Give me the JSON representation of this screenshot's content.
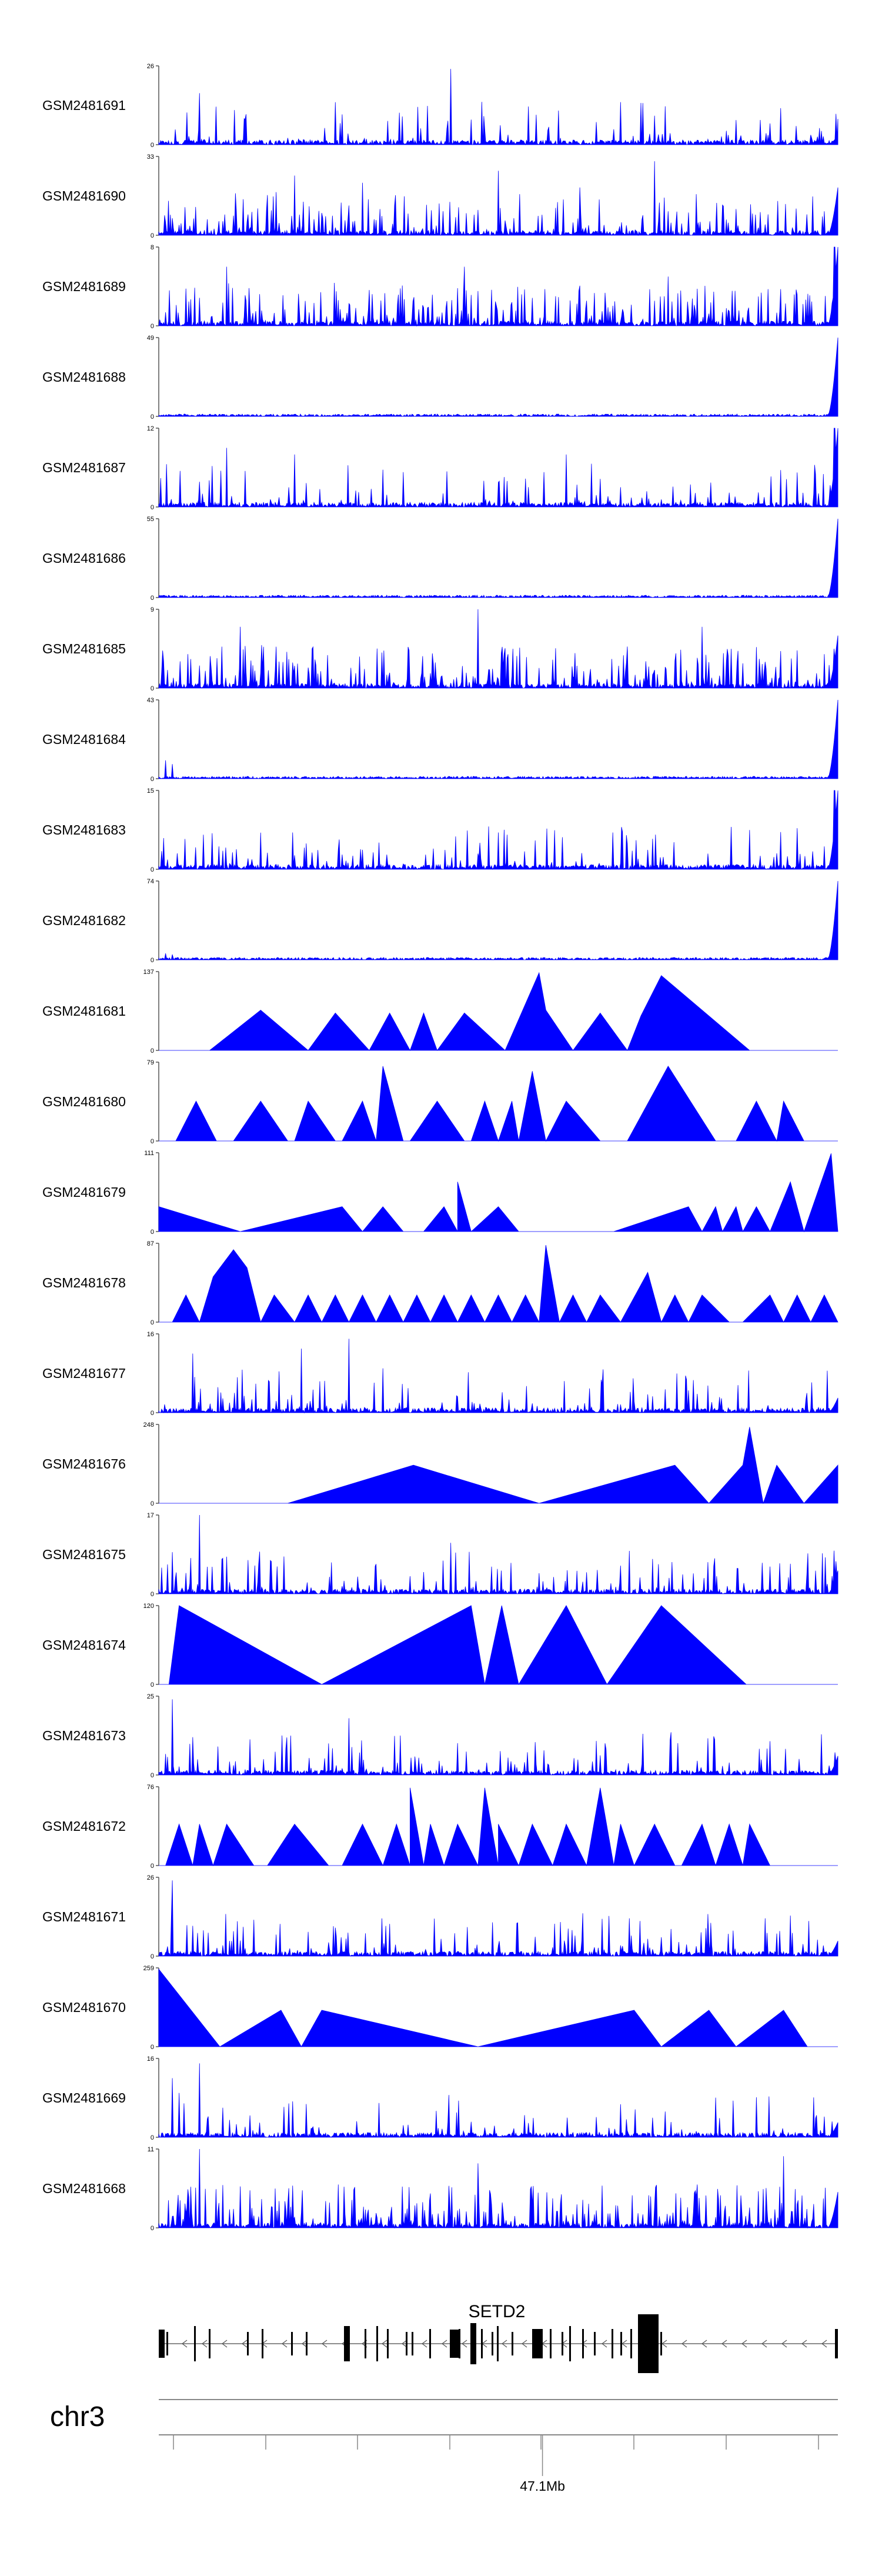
{
  "chart_data": {
    "type": "area",
    "title": "",
    "color": "#0000ff",
    "tracks": [
      {
        "name": "GSM2481691",
        "ymax": 26,
        "pattern": "noise",
        "peaks": [
          [
            0.43,
            25
          ],
          [
            0.06,
            17
          ],
          [
            0.27,
            10
          ],
          [
            0.26,
            14
          ],
          [
            0.9,
            7
          ]
        ],
        "tail": 3
      },
      {
        "name": "GSM2481690",
        "ymax": 33,
        "pattern": "tri",
        "peaks": [
          [
            0.73,
            31
          ],
          [
            0.5,
            27
          ],
          [
            0.2,
            25
          ],
          [
            0.3,
            22
          ],
          [
            0.62,
            20
          ]
        ],
        "tail": 20
      },
      {
        "name": "GSM2481689",
        "ymax": 8,
        "pattern": "noise_dense",
        "peaks": [
          [
            0.995,
            8
          ],
          [
            0.45,
            6
          ],
          [
            0.1,
            6
          ],
          [
            0.75,
            5
          ]
        ],
        "tail": 8
      },
      {
        "name": "GSM2481688",
        "ymax": 49,
        "pattern": "flat",
        "peaks": [],
        "tail": 49
      },
      {
        "name": "GSM2481687",
        "ymax": 12,
        "pattern": "noise",
        "peaks": [
          [
            0.995,
            12
          ],
          [
            0.1,
            9
          ],
          [
            0.2,
            8
          ],
          [
            0.6,
            8
          ]
        ],
        "tail": 12
      },
      {
        "name": "GSM2481686",
        "ymax": 55,
        "pattern": "flat",
        "peaks": [],
        "tail": 55
      },
      {
        "name": "GSM2481685",
        "ymax": 9,
        "pattern": "noise_dense",
        "peaks": [
          [
            0.47,
            9
          ],
          [
            0.12,
            7
          ],
          [
            0.8,
            7
          ]
        ],
        "tail": 6
      },
      {
        "name": "GSM2481684",
        "ymax": 43,
        "pattern": "flat",
        "peaks": [
          [
            0.01,
            10
          ],
          [
            0.02,
            8
          ]
        ],
        "tail": 43
      },
      {
        "name": "GSM2481683",
        "ymax": 15,
        "pattern": "noise",
        "peaks": [
          [
            0.995,
            15
          ],
          [
            0.5,
            7
          ]
        ],
        "tail": 15
      },
      {
        "name": "GSM2481682",
        "ymax": 74,
        "pattern": "flat",
        "peaks": [
          [
            0.01,
            6
          ],
          [
            0.02,
            5
          ]
        ],
        "tail": 74
      },
      {
        "name": "GSM2481681",
        "ymax": 137,
        "pattern": "tri_sparse",
        "peaks": [
          [
            0.075,
            0
          ],
          [
            0.15,
            70
          ],
          [
            0.22,
            0
          ],
          [
            0.26,
            65
          ],
          [
            0.31,
            0
          ],
          [
            0.34,
            65
          ],
          [
            0.37,
            0
          ],
          [
            0.39,
            65
          ],
          [
            0.41,
            0
          ],
          [
            0.45,
            65
          ],
          [
            0.51,
            0
          ],
          [
            0.57,
            70
          ],
          [
            0.56,
            135
          ],
          [
            0.61,
            0
          ],
          [
            0.65,
            65
          ],
          [
            0.69,
            0
          ],
          [
            0.71,
            60
          ],
          [
            0.74,
            130
          ],
          [
            0.87,
            0
          ]
        ],
        "tail": 0
      },
      {
        "name": "GSM2481680",
        "ymax": 79,
        "pattern": "tri_sparse",
        "peaks": [
          [
            0.025,
            0
          ],
          [
            0.055,
            40
          ],
          [
            0.085,
            0
          ],
          [
            0.11,
            0
          ],
          [
            0.15,
            40
          ],
          [
            0.19,
            0
          ],
          [
            0.2,
            0
          ],
          [
            0.22,
            40
          ],
          [
            0.26,
            0
          ],
          [
            0.27,
            0
          ],
          [
            0.3,
            40
          ],
          [
            0.32,
            0
          ],
          [
            0.33,
            75
          ],
          [
            0.36,
            0
          ],
          [
            0.37,
            0
          ],
          [
            0.41,
            40
          ],
          [
            0.45,
            0
          ],
          [
            0.46,
            0
          ],
          [
            0.48,
            40
          ],
          [
            0.5,
            0
          ],
          [
            0.52,
            40
          ],
          [
            0.53,
            0
          ],
          [
            0.55,
            70
          ],
          [
            0.57,
            0
          ],
          [
            0.6,
            40
          ],
          [
            0.65,
            0
          ],
          [
            0.69,
            0
          ],
          [
            0.75,
            75
          ],
          [
            0.82,
            0
          ],
          [
            0.85,
            0
          ],
          [
            0.88,
            40
          ],
          [
            0.91,
            0
          ],
          [
            0.92,
            40
          ],
          [
            0.95,
            0
          ]
        ],
        "tail": 0
      },
      {
        "name": "GSM2481679",
        "ymax": 111,
        "pattern": "tri_sparse",
        "peaks": [
          [
            0.0,
            35
          ],
          [
            0.12,
            0
          ],
          [
            0.27,
            35
          ],
          [
            0.3,
            0
          ],
          [
            0.33,
            35
          ],
          [
            0.36,
            0
          ],
          [
            0.39,
            0
          ],
          [
            0.42,
            35
          ],
          [
            0.44,
            0
          ],
          [
            0.44,
            70
          ],
          [
            0.46,
            0
          ],
          [
            0.5,
            35
          ],
          [
            0.53,
            0
          ],
          [
            0.67,
            0
          ],
          [
            0.78,
            35
          ],
          [
            0.8,
            0
          ],
          [
            0.82,
            35
          ],
          [
            0.83,
            0
          ],
          [
            0.85,
            35
          ],
          [
            0.86,
            0
          ],
          [
            0.88,
            35
          ],
          [
            0.9,
            0
          ],
          [
            0.93,
            70
          ],
          [
            0.95,
            0
          ],
          [
            0.99,
            110
          ],
          [
            1.0,
            0
          ]
        ],
        "tail": 0
      },
      {
        "name": "GSM2481678",
        "ymax": 87,
        "pattern": "tri_sparse",
        "peaks": [
          [
            0.02,
            0
          ],
          [
            0.04,
            30
          ],
          [
            0.06,
            0
          ],
          [
            0.08,
            50
          ],
          [
            0.1,
            70
          ],
          [
            0.11,
            80
          ],
          [
            0.13,
            60
          ],
          [
            0.15,
            0
          ],
          [
            0.17,
            30
          ],
          [
            0.2,
            0
          ],
          [
            0.22,
            30
          ],
          [
            0.24,
            0
          ],
          [
            0.26,
            30
          ],
          [
            0.28,
            0
          ],
          [
            0.3,
            30
          ],
          [
            0.32,
            0
          ],
          [
            0.34,
            30
          ],
          [
            0.36,
            0
          ],
          [
            0.38,
            30
          ],
          [
            0.4,
            0
          ],
          [
            0.42,
            30
          ],
          [
            0.44,
            0
          ],
          [
            0.46,
            30
          ],
          [
            0.48,
            0
          ],
          [
            0.5,
            30
          ],
          [
            0.52,
            0
          ],
          [
            0.54,
            30
          ],
          [
            0.56,
            0
          ],
          [
            0.57,
            85
          ],
          [
            0.59,
            0
          ],
          [
            0.61,
            30
          ],
          [
            0.63,
            0
          ],
          [
            0.65,
            30
          ],
          [
            0.68,
            0
          ],
          [
            0.72,
            55
          ],
          [
            0.74,
            0
          ],
          [
            0.76,
            30
          ],
          [
            0.78,
            0
          ],
          [
            0.8,
            30
          ],
          [
            0.84,
            0
          ],
          [
            0.86,
            0
          ],
          [
            0.9,
            30
          ],
          [
            0.92,
            0
          ],
          [
            0.94,
            30
          ],
          [
            0.96,
            0
          ],
          [
            0.98,
            30
          ],
          [
            1.0,
            0
          ]
        ],
        "tail": 0
      },
      {
        "name": "GSM2481677",
        "ymax": 16,
        "pattern": "noise",
        "peaks": [
          [
            0.28,
            15
          ],
          [
            0.21,
            13
          ],
          [
            0.05,
            12
          ],
          [
            0.33,
            9
          ]
        ],
        "tail": 3
      },
      {
        "name": "GSM2481676",
        "ymax": 248,
        "pattern": "tri_sparse",
        "peaks": [
          [
            0.19,
            0
          ],
          [
            0.375,
            120
          ],
          [
            0.56,
            0
          ],
          [
            0.76,
            120
          ],
          [
            0.81,
            0
          ],
          [
            0.86,
            120
          ],
          [
            0.87,
            240
          ],
          [
            0.89,
            0
          ],
          [
            0.91,
            120
          ],
          [
            0.95,
            0
          ],
          [
            1.0,
            120
          ],
          [
            1.0,
            0
          ]
        ],
        "tail": 0
      },
      {
        "name": "GSM2481675",
        "ymax": 17,
        "pattern": "noise",
        "peaks": [
          [
            0.06,
            17
          ],
          [
            0.43,
            11
          ],
          [
            0.02,
            9
          ],
          [
            0.1,
            8
          ]
        ],
        "tail": 5
      },
      {
        "name": "GSM2481674",
        "ymax": 120,
        "pattern": "tri_sparse",
        "peaks": [
          [
            0.015,
            0
          ],
          [
            0.03,
            120
          ],
          [
            0.24,
            0
          ],
          [
            0.46,
            120
          ],
          [
            0.48,
            0
          ],
          [
            0.505,
            120
          ],
          [
            0.53,
            0
          ],
          [
            0.6,
            120
          ],
          [
            0.66,
            0
          ],
          [
            0.74,
            120
          ],
          [
            0.865,
            0
          ]
        ],
        "tail": 0
      },
      {
        "name": "GSM2481673",
        "ymax": 25,
        "pattern": "noise",
        "peaks": [
          [
            0.02,
            24
          ],
          [
            0.28,
            18
          ],
          [
            0.05,
            12
          ],
          [
            0.25,
            10
          ]
        ],
        "tail": 6
      },
      {
        "name": "GSM2481672",
        "ymax": 76,
        "pattern": "tri_sparse",
        "peaks": [
          [
            0.01,
            0
          ],
          [
            0.03,
            40
          ],
          [
            0.05,
            0
          ],
          [
            0.06,
            40
          ],
          [
            0.08,
            0
          ],
          [
            0.1,
            40
          ],
          [
            0.14,
            0
          ],
          [
            0.16,
            0
          ],
          [
            0.2,
            40
          ],
          [
            0.25,
            0
          ],
          [
            0.27,
            0
          ],
          [
            0.3,
            40
          ],
          [
            0.33,
            0
          ],
          [
            0.35,
            40
          ],
          [
            0.37,
            0
          ],
          [
            0.37,
            75
          ],
          [
            0.39,
            0
          ],
          [
            0.4,
            40
          ],
          [
            0.42,
            0
          ],
          [
            0.44,
            40
          ],
          [
            0.47,
            0
          ],
          [
            0.48,
            75
          ],
          [
            0.5,
            0
          ],
          [
            0.5,
            40
          ],
          [
            0.53,
            0
          ],
          [
            0.55,
            40
          ],
          [
            0.58,
            0
          ],
          [
            0.6,
            40
          ],
          [
            0.63,
            0
          ],
          [
            0.65,
            75
          ],
          [
            0.67,
            0
          ],
          [
            0.68,
            40
          ],
          [
            0.7,
            0
          ],
          [
            0.73,
            40
          ],
          [
            0.76,
            0
          ],
          [
            0.77,
            0
          ],
          [
            0.8,
            40
          ],
          [
            0.82,
            0
          ],
          [
            0.84,
            40
          ],
          [
            0.86,
            0
          ],
          [
            0.87,
            40
          ],
          [
            0.9,
            0
          ],
          [
            0.91,
            0
          ],
          [
            0.95,
            0
          ]
        ],
        "tail": 0
      },
      {
        "name": "GSM2481671",
        "ymax": 26,
        "pattern": "noise",
        "peaks": [
          [
            0.02,
            25
          ],
          [
            0.05,
            10
          ],
          [
            0.14,
            12
          ],
          [
            0.22,
            8
          ]
        ],
        "tail": 5
      },
      {
        "name": "GSM2481670",
        "ymax": 259,
        "pattern": "tri_sparse",
        "peaks": [
          [
            0.0,
            255
          ],
          [
            0.09,
            0
          ],
          [
            0.18,
            120
          ],
          [
            0.21,
            0
          ],
          [
            0.24,
            120
          ],
          [
            0.47,
            0
          ],
          [
            0.7,
            120
          ],
          [
            0.74,
            0
          ],
          [
            0.81,
            120
          ],
          [
            0.85,
            0
          ],
          [
            0.92,
            120
          ],
          [
            0.955,
            0
          ]
        ],
        "tail": 0
      },
      {
        "name": "GSM2481669",
        "ymax": 16,
        "pattern": "noise",
        "peaks": [
          [
            0.06,
            15
          ],
          [
            0.02,
            12
          ],
          [
            0.03,
            9
          ]
        ],
        "tail": 3
      },
      {
        "name": "GSM2481668",
        "ymax": 11,
        "pattern": "noise_dense",
        "peaks": [
          [
            0.06,
            11
          ],
          [
            0.47,
            9
          ],
          [
            0.92,
            10
          ]
        ],
        "tail": 5
      }
    ],
    "gene": {
      "name": "SETD2",
      "chromosome": "chr3",
      "position_label": "47.1Mb",
      "position_fraction": 0.565,
      "strand": "-"
    }
  }
}
